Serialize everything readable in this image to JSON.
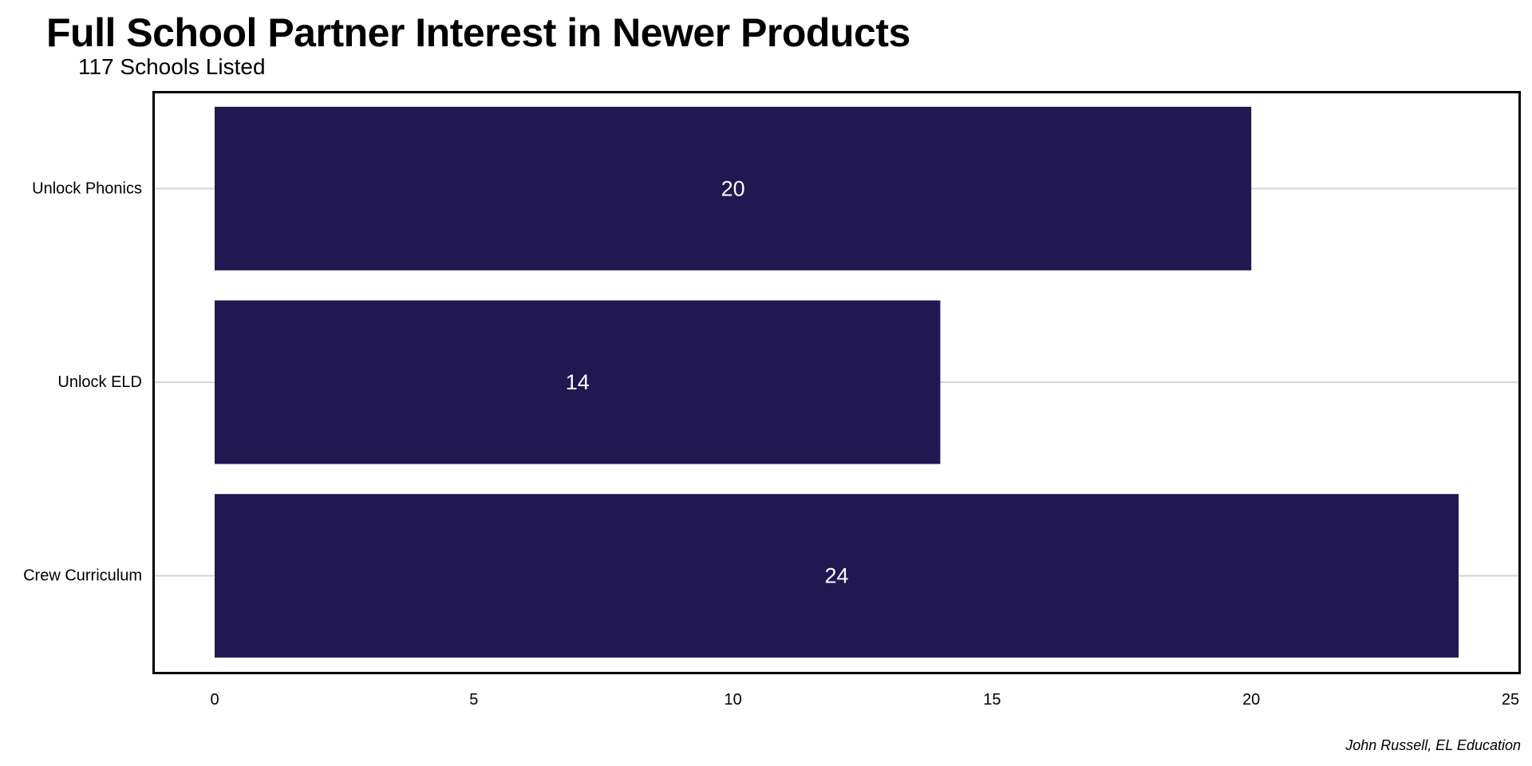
{
  "chart_data": {
    "type": "bar",
    "orientation": "horizontal",
    "title": "Full School Partner Interest in Newer Products",
    "subtitle": "117 Schools Listed",
    "caption": "John Russell, EL Education",
    "categories": [
      "Unlock Phonics",
      "Unlock ELD",
      "Crew Curriculum"
    ],
    "values": [
      20,
      14,
      24
    ],
    "data_labels": [
      "20",
      "14",
      "24"
    ],
    "xlim": [
      0,
      25
    ],
    "x_ticks": [
      0,
      5,
      10,
      15,
      20,
      25
    ],
    "x_tick_labels": [
      "0",
      "5",
      "10",
      "15",
      "20",
      "25"
    ],
    "xlabel": "",
    "ylabel": "",
    "grid": {
      "major_y": true,
      "major_x": false
    },
    "legend": "none",
    "colors": {
      "bar": "#211852",
      "bar_label": "#ffffff",
      "grid": "#d4d4d4",
      "panel_border": "#000000"
    }
  }
}
